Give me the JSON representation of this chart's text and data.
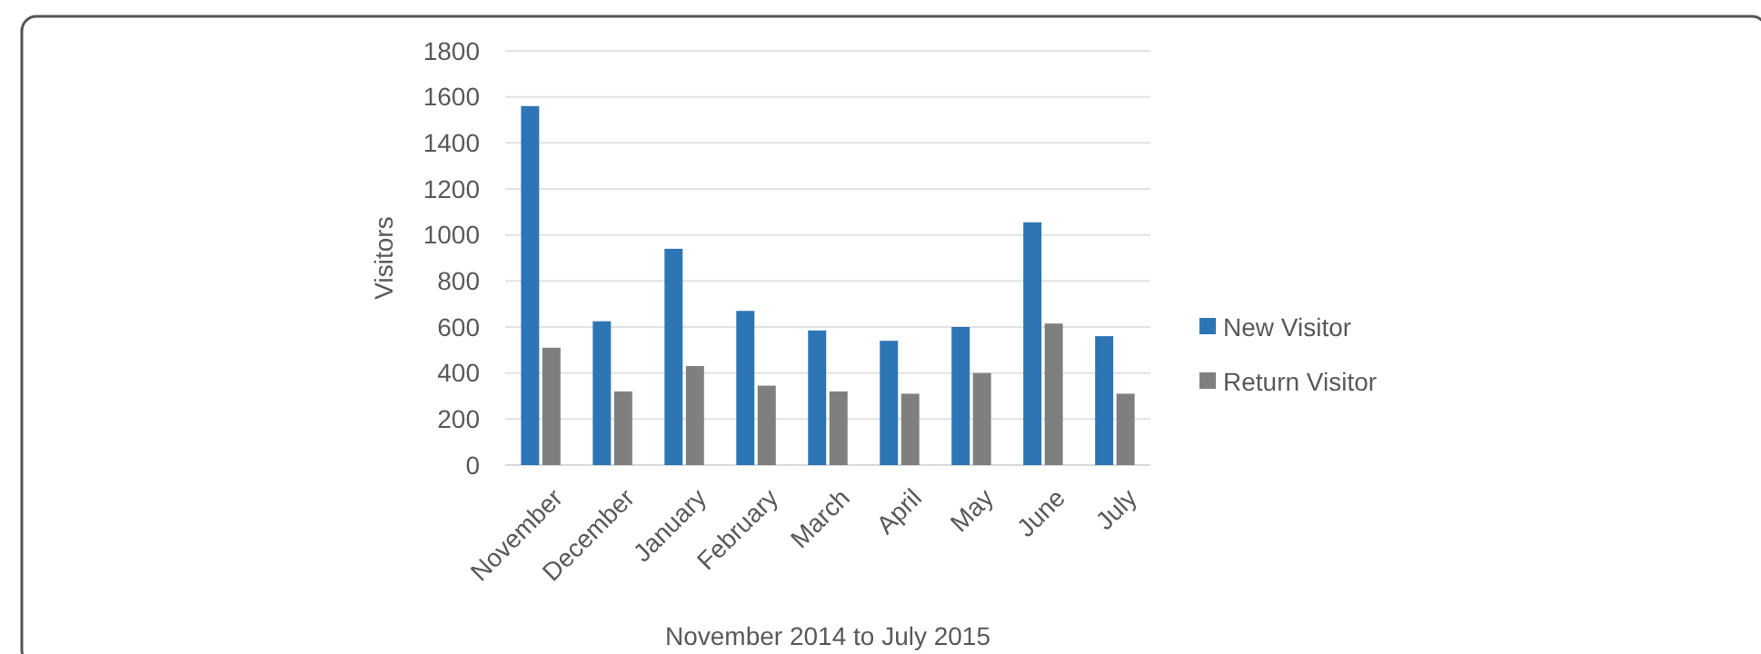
{
  "chart_data": {
    "type": "bar",
    "xlabel": "November 2014 to July 2015",
    "ylabel": "Visitors",
    "categories": [
      "November",
      "December",
      "January",
      "February",
      "March",
      "April",
      "May",
      "June",
      "July"
    ],
    "series": [
      {
        "name": "New Visitor",
        "color": "#2e75b6",
        "values": [
          1560,
          625,
          940,
          670,
          585,
          540,
          600,
          1055,
          560
        ]
      },
      {
        "name": "Return Visitor",
        "color": "#7f7f7f",
        "values": [
          510,
          320,
          430,
          345,
          320,
          310,
          400,
          615,
          310
        ]
      }
    ],
    "ylim": [
      0,
      1800
    ],
    "yticks": [
      0,
      200,
      400,
      600,
      800,
      1000,
      1200,
      1400,
      1600,
      1800
    ],
    "grid": "y",
    "legend": "right"
  }
}
